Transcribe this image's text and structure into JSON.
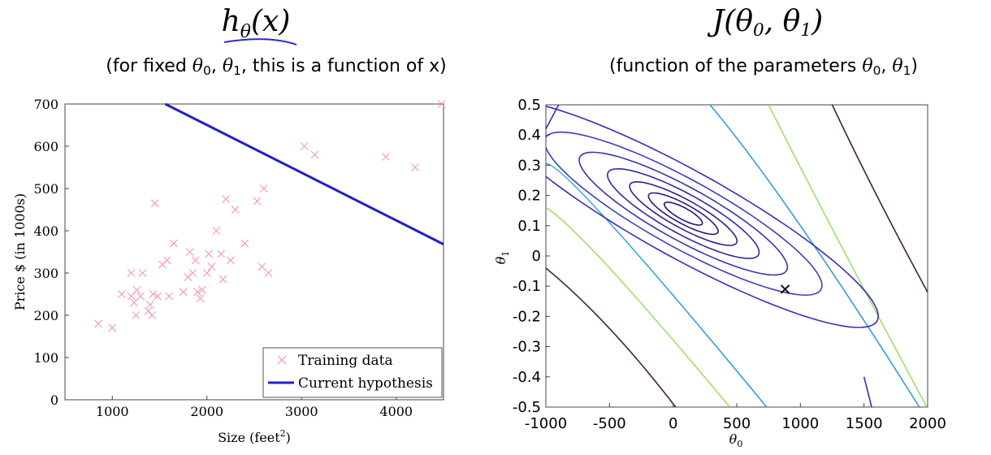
{
  "headings": {
    "left_title": "hθ(x)",
    "left_subtitle": "(for fixed θ0, θ1, this is a function of x)",
    "right_title": "J(θ0, θ1)",
    "right_subtitle": "(function of the parameters θ0, θ1)"
  },
  "chart_data": [
    {
      "type": "scatter",
      "xlabel": "Size (feet2)",
      "ylabel": "Price $ (in 1000s)",
      "xlim": [
        500,
        4500
      ],
      "ylim": [
        0,
        700
      ],
      "x_ticks": [
        1000,
        2000,
        3000,
        4000
      ],
      "y_ticks": [
        0,
        100,
        200,
        300,
        400,
        500,
        600,
        700
      ],
      "legend_position": "bottom-right",
      "series": [
        {
          "name": "Training data",
          "marker": "x",
          "color": "#f2a0b0",
          "points": [
            [
              852,
              180
            ],
            [
              1000,
              170
            ],
            [
              1100,
              250
            ],
            [
              1200,
              300
            ],
            [
              1200,
              245
            ],
            [
              1230,
              230
            ],
            [
              1250,
              200
            ],
            [
              1260,
              260
            ],
            [
              1300,
              245
            ],
            [
              1320,
              300
            ],
            [
              1380,
              210
            ],
            [
              1400,
              225
            ],
            [
              1420,
              200
            ],
            [
              1430,
              250
            ],
            [
              1450,
              465
            ],
            [
              1480,
              245
            ],
            [
              1530,
              320
            ],
            [
              1580,
              330
            ],
            [
              1600,
              245
            ],
            [
              1650,
              370
            ],
            [
              1750,
              255
            ],
            [
              1800,
              290
            ],
            [
              1820,
              350
            ],
            [
              1850,
              300
            ],
            [
              1880,
              330
            ],
            [
              1900,
              255
            ],
            [
              1930,
              240
            ],
            [
              1950,
              260
            ],
            [
              2000,
              300
            ],
            [
              2020,
              345
            ],
            [
              2050,
              315
            ],
            [
              2100,
              400
            ],
            [
              2150,
              345
            ],
            [
              2170,
              285
            ],
            [
              2200,
              475
            ],
            [
              2250,
              330
            ],
            [
              2300,
              450
            ],
            [
              2400,
              370
            ],
            [
              2530,
              470
            ],
            [
              2580,
              315
            ],
            [
              2600,
              500
            ],
            [
              2650,
              300
            ],
            [
              3030,
              600
            ],
            [
              3140,
              580
            ],
            [
              3890,
              575
            ],
            [
              4200,
              550
            ],
            [
              4480,
              700
            ]
          ]
        },
        {
          "name": "Current hypothesis",
          "type": "line",
          "color": "#2020c8",
          "points": [
            [
              1560,
              700
            ],
            [
              4500,
              368
            ]
          ]
        }
      ]
    },
    {
      "type": "contour",
      "xlabel": "θ0",
      "ylabel": "θ1",
      "xlim": [
        -1000,
        2000
      ],
      "ylim": [
        -0.5,
        0.5
      ],
      "x_ticks": [
        -1000,
        -500,
        0,
        500,
        1000,
        1500,
        2000
      ],
      "x_tick_labels": [
        "-1000",
        "-500",
        "0",
        "500",
        "1000",
        "1500",
        "2000"
      ],
      "y_ticks": [
        0.5,
        0.4,
        0.3,
        0.2,
        0.1,
        0,
        -0.1,
        -0.2,
        -0.3,
        -0.4,
        -0.5
      ],
      "y_tick_labels": [
        "0.5",
        "0.4",
        "0.3",
        "0.2",
        "0.1",
        "0",
        "-0.1",
        "-0.2",
        "-0.3",
        "-0.4",
        "-0.5"
      ],
      "center": [
        80,
        0.14
      ],
      "marked_point": [
        880,
        -0.11
      ],
      "ellipses": [
        {
          "a": 0.06,
          "b": 0.018,
          "color": "#2a1470"
        },
        {
          "a": 0.11,
          "b": 0.03,
          "color": "#2c1a7a"
        },
        {
          "a": 0.17,
          "b": 0.044,
          "color": "#2e2090"
        },
        {
          "a": 0.24,
          "b": 0.062,
          "color": "#2f2aa0"
        },
        {
          "a": 0.33,
          "b": 0.082,
          "color": "#3436b0"
        },
        {
          "a": 0.44,
          "b": 0.105,
          "color": "#3a40bc"
        }
      ],
      "diagonal_lines": [
        {
          "from": [
            -1000,
            0.305
          ],
          "to": [
            735,
            -0.5
          ],
          "via": [
            -500,
            0.11
          ],
          "color": "#2f9fdb"
        },
        {
          "from": [
            -1000,
            0.16
          ],
          "to": [
            445,
            -0.5
          ],
          "via": [
            -500,
            -0.04
          ],
          "color": "#9fe06a"
        },
        {
          "from": [
            -1000,
            -0.04
          ],
          "to": [
            20,
            -0.5
          ],
          "via": [
            -500,
            -0.24
          ],
          "color": "#4a2030"
        },
        {
          "from": [
            750,
            0.5
          ],
          "to": [
            2000,
            -0.505
          ],
          "via": [
            1300,
            0.05
          ],
          "color": "#9fe06a"
        },
        {
          "from": [
            290,
            0.5
          ],
          "to": [
            1935,
            -0.5
          ],
          "via": [
            1000,
            0.1
          ],
          "color": "#2f9fdb"
        },
        {
          "from": [
            1250,
            0.5
          ],
          "to": [
            2000,
            -0.12
          ],
          "via": [
            1600,
            0.2
          ],
          "color": "#4a2030"
        }
      ],
      "outer_curves": [
        {
          "color": "#3a2ac0",
          "points": [
            [
              -900,
              0.5
            ],
            [
              -1000,
              0.42
            ]
          ]
        },
        {
          "color": "#3a2ac0",
          "points": [
            [
              1560,
              -0.5
            ],
            [
              1500,
              -0.4
            ]
          ]
        }
      ]
    }
  ]
}
